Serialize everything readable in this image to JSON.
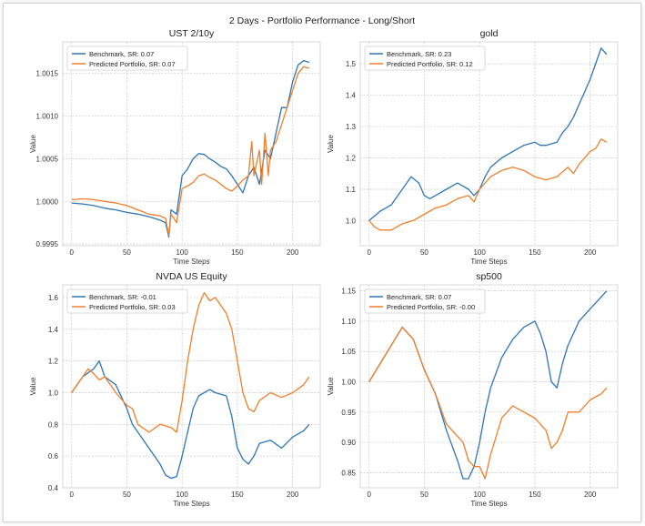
{
  "figure": {
    "suptitle": "2 Days - Portfolio Performance - Long/Short"
  },
  "colors": {
    "benchmark": "#2e75b6",
    "predicted": "#f07f2a"
  },
  "chart_data": [
    {
      "type": "line",
      "title": "UST 2/10y",
      "xlabel": "Time Steps",
      "ylabel": "Value",
      "xlim": [
        -8,
        225
      ],
      "ylim": [
        0.99948,
        1.00187
      ],
      "xticks": [
        0,
        50,
        100,
        150,
        200
      ],
      "yticks": [
        0.9995,
        1.0,
        1.0005,
        1.001,
        1.0015
      ],
      "ytick_labels": [
        "0.9995",
        "1.0000",
        "1.0005",
        "1.0010",
        "1.0015"
      ],
      "legend_position": "upper left",
      "grid": true,
      "series": [
        {
          "name": "Benchmark, SR: 0.07",
          "color_key": "benchmark",
          "x": [
            0,
            10,
            20,
            30,
            40,
            50,
            60,
            70,
            80,
            85,
            88,
            90,
            95,
            100,
            105,
            110,
            115,
            120,
            125,
            130,
            135,
            140,
            145,
            150,
            155,
            160,
            165,
            170,
            175,
            180,
            185,
            190,
            195,
            200,
            205,
            210,
            215
          ],
          "y": [
            0.99998,
            0.99997,
            0.99995,
            0.99992,
            0.9999,
            0.99987,
            0.99985,
            0.99982,
            0.99978,
            0.99975,
            0.99958,
            0.9999,
            0.99985,
            1.0003,
            1.00038,
            1.0005,
            1.00056,
            1.00055,
            1.0005,
            1.00046,
            1.00041,
            1.00038,
            1.0003,
            1.0002,
            1.0001,
            1.0003,
            1.0004,
            1.0002,
            1.0006,
            1.0005,
            1.0008,
            1.0011,
            1.0011,
            1.0014,
            1.0016,
            1.00165,
            1.00163
          ]
        },
        {
          "name": "Predicted Portfolio, SR: 0.07",
          "color_key": "predicted",
          "x": [
            0,
            10,
            20,
            30,
            40,
            50,
            60,
            70,
            80,
            85,
            88,
            90,
            95,
            100,
            105,
            110,
            115,
            120,
            125,
            130,
            135,
            140,
            145,
            150,
            155,
            160,
            163,
            165,
            170,
            172,
            175,
            178,
            180,
            185,
            190,
            195,
            200,
            205,
            210,
            215
          ],
          "y": [
            1.00002,
            1.00003,
            1.00002,
            1.0,
            0.99998,
            0.99995,
            0.9999,
            0.99985,
            0.99983,
            0.9998,
            0.9996,
            0.99985,
            0.99975,
            1.00015,
            1.00018,
            1.00022,
            1.0003,
            1.00032,
            1.00028,
            1.00025,
            1.0002,
            1.00015,
            1.00012,
            1.00018,
            1.00025,
            1.0003,
            1.0007,
            1.0003,
            1.0006,
            1.0002,
            1.0008,
            1.0003,
            1.0006,
            1.0007,
            1.0009,
            1.0011,
            1.0013,
            1.0015,
            1.00158,
            1.00156
          ]
        }
      ]
    },
    {
      "type": "line",
      "title": "gold",
      "xlabel": "Time Steps",
      "ylabel": "Value",
      "xlim": [
        -8,
        225
      ],
      "ylim": [
        0.92,
        1.57
      ],
      "xticks": [
        0,
        50,
        100,
        150,
        200
      ],
      "yticks": [
        1.0,
        1.1,
        1.2,
        1.3,
        1.4,
        1.5
      ],
      "ytick_labels": [
        "1.0",
        "1.1",
        "1.2",
        "1.3",
        "1.4",
        "1.5"
      ],
      "legend_position": "upper left",
      "grid": true,
      "series": [
        {
          "name": "Benchmark, SR: 0.23",
          "color_key": "benchmark",
          "x": [
            0,
            10,
            20,
            30,
            38,
            45,
            50,
            55,
            60,
            70,
            80,
            90,
            95,
            100,
            105,
            110,
            120,
            130,
            140,
            150,
            155,
            160,
            170,
            175,
            180,
            185,
            190,
            195,
            200,
            205,
            210,
            215
          ],
          "y": [
            1.0,
            1.03,
            1.05,
            1.1,
            1.14,
            1.12,
            1.08,
            1.07,
            1.08,
            1.1,
            1.12,
            1.1,
            1.08,
            1.1,
            1.14,
            1.17,
            1.2,
            1.22,
            1.24,
            1.25,
            1.24,
            1.24,
            1.25,
            1.28,
            1.3,
            1.33,
            1.37,
            1.41,
            1.45,
            1.5,
            1.55,
            1.53
          ]
        },
        {
          "name": "Predicted Portfolio, SR: 0.12",
          "color_key": "predicted",
          "x": [
            0,
            5,
            10,
            20,
            30,
            40,
            50,
            60,
            70,
            80,
            90,
            95,
            100,
            105,
            110,
            120,
            130,
            140,
            150,
            160,
            170,
            180,
            185,
            190,
            195,
            200,
            205,
            210,
            215
          ],
          "y": [
            1.0,
            0.98,
            0.97,
            0.97,
            0.99,
            1.0,
            1.02,
            1.04,
            1.05,
            1.07,
            1.08,
            1.06,
            1.1,
            1.12,
            1.14,
            1.16,
            1.17,
            1.16,
            1.14,
            1.13,
            1.14,
            1.17,
            1.15,
            1.18,
            1.2,
            1.22,
            1.23,
            1.26,
            1.25
          ]
        }
      ]
    },
    {
      "type": "line",
      "title": "NVDA US Equity",
      "xlabel": "Time Steps",
      "ylabel": "Value",
      "xlim": [
        -8,
        225
      ],
      "ylim": [
        0.4,
        1.68
      ],
      "xticks": [
        0,
        50,
        100,
        150,
        200
      ],
      "yticks": [
        0.4,
        0.6,
        0.8,
        1.0,
        1.2,
        1.4,
        1.6
      ],
      "ytick_labels": [
        "0.4",
        "0.6",
        "0.8",
        "1.0",
        "1.2",
        "1.4",
        "1.6"
      ],
      "legend_position": "upper left",
      "grid": true,
      "series": [
        {
          "name": "Benchmark, SR: -0.01",
          "color_key": "benchmark",
          "x": [
            0,
            10,
            20,
            25,
            30,
            40,
            50,
            55,
            60,
            70,
            80,
            85,
            90,
            95,
            100,
            105,
            110,
            115,
            120,
            125,
            130,
            140,
            145,
            150,
            155,
            160,
            165,
            170,
            180,
            190,
            200,
            210,
            215
          ],
          "y": [
            1.0,
            1.1,
            1.15,
            1.2,
            1.1,
            1.05,
            0.9,
            0.8,
            0.75,
            0.65,
            0.55,
            0.48,
            0.46,
            0.47,
            0.6,
            0.75,
            0.9,
            0.98,
            1.0,
            1.02,
            1.0,
            0.98,
            0.85,
            0.65,
            0.58,
            0.55,
            0.6,
            0.68,
            0.7,
            0.65,
            0.72,
            0.76,
            0.8
          ]
        },
        {
          "name": "Predicted Portfolio, SR: 0.03",
          "color_key": "predicted",
          "x": [
            0,
            5,
            10,
            15,
            20,
            25,
            30,
            40,
            50,
            55,
            60,
            70,
            80,
            90,
            95,
            100,
            105,
            110,
            115,
            120,
            125,
            130,
            135,
            140,
            145,
            150,
            155,
            160,
            165,
            170,
            180,
            190,
            200,
            210,
            215
          ],
          "y": [
            1.0,
            1.05,
            1.1,
            1.15,
            1.12,
            1.08,
            1.1,
            1.0,
            0.92,
            0.9,
            0.8,
            0.75,
            0.8,
            0.78,
            0.75,
            0.95,
            1.2,
            1.4,
            1.55,
            1.63,
            1.58,
            1.6,
            1.55,
            1.5,
            1.4,
            1.2,
            1.0,
            0.9,
            0.88,
            0.95,
            1.0,
            0.97,
            1.0,
            1.05,
            1.1
          ]
        }
      ]
    },
    {
      "type": "line",
      "title": "sp500",
      "xlabel": "Time Steps",
      "ylabel": "Value",
      "xlim": [
        -8,
        225
      ],
      "ylim": [
        0.825,
        1.16
      ],
      "xticks": [
        0,
        50,
        100,
        150,
        200
      ],
      "yticks": [
        0.85,
        0.9,
        0.95,
        1.0,
        1.05,
        1.1,
        1.15
      ],
      "ytick_labels": [
        "0.85",
        "0.90",
        "0.95",
        "1.00",
        "1.05",
        "1.10",
        "1.15"
      ],
      "legend_position": "upper left",
      "grid": true,
      "series": [
        {
          "name": "Benchmark, SR: 0.07",
          "color_key": "benchmark",
          "x": [
            0,
            10,
            20,
            30,
            40,
            50,
            60,
            70,
            80,
            85,
            90,
            95,
            100,
            105,
            110,
            120,
            130,
            140,
            150,
            155,
            160,
            165,
            170,
            175,
            180,
            185,
            190,
            200,
            210,
            215
          ],
          "y": [
            1.0,
            1.03,
            1.06,
            1.09,
            1.07,
            1.02,
            0.98,
            0.92,
            0.87,
            0.84,
            0.84,
            0.86,
            0.9,
            0.95,
            0.99,
            1.04,
            1.07,
            1.09,
            1.1,
            1.08,
            1.05,
            1.0,
            0.99,
            1.03,
            1.06,
            1.08,
            1.1,
            1.12,
            1.14,
            1.15
          ]
        },
        {
          "name": "Predicted Portfolio, SR: -0.00",
          "color_key": "predicted",
          "x": [
            0,
            10,
            20,
            30,
            40,
            50,
            60,
            70,
            80,
            85,
            90,
            95,
            100,
            105,
            110,
            120,
            130,
            140,
            150,
            160,
            165,
            170,
            175,
            180,
            190,
            200,
            210,
            215
          ],
          "y": [
            1.0,
            1.03,
            1.06,
            1.09,
            1.07,
            1.02,
            0.98,
            0.93,
            0.91,
            0.9,
            0.87,
            0.86,
            0.86,
            0.84,
            0.88,
            0.94,
            0.96,
            0.95,
            0.94,
            0.92,
            0.89,
            0.9,
            0.92,
            0.95,
            0.95,
            0.97,
            0.98,
            0.99
          ]
        }
      ]
    }
  ]
}
